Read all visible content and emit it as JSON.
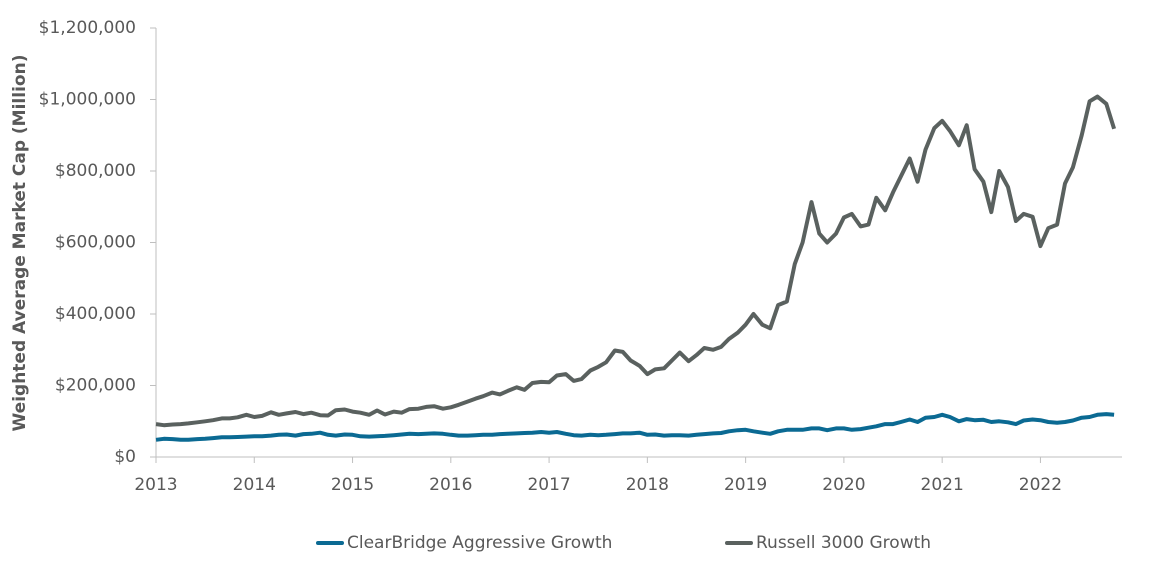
{
  "chart_data": {
    "type": "line",
    "y_label": "Weighted Average Market Cap (Million)",
    "x": [
      2013,
      2013.08,
      2013.17,
      2013.25,
      2013.33,
      2013.42,
      2013.5,
      2013.58,
      2013.67,
      2013.75,
      2013.83,
      2013.92,
      2014,
      2014.08,
      2014.17,
      2014.25,
      2014.33,
      2014.42,
      2014.5,
      2014.58,
      2014.67,
      2014.75,
      2014.83,
      2014.92,
      2015,
      2015.08,
      2015.17,
      2015.25,
      2015.33,
      2015.42,
      2015.5,
      2015.58,
      2015.67,
      2015.75,
      2015.83,
      2015.92,
      2016,
      2016.08,
      2016.17,
      2016.25,
      2016.33,
      2016.42,
      2016.5,
      2016.58,
      2016.67,
      2016.75,
      2016.83,
      2016.92,
      2017,
      2017.08,
      2017.17,
      2017.25,
      2017.33,
      2017.42,
      2017.5,
      2017.58,
      2017.67,
      2017.75,
      2017.83,
      2017.92,
      2018,
      2018.08,
      2018.17,
      2018.25,
      2018.33,
      2018.42,
      2018.5,
      2018.58,
      2018.67,
      2018.75,
      2018.83,
      2018.92,
      2019,
      2019.08,
      2019.17,
      2019.25,
      2019.33,
      2019.42,
      2019.5,
      2019.58,
      2019.67,
      2019.75,
      2019.83,
      2019.92,
      2020,
      2020.08,
      2020.17,
      2020.25,
      2020.33,
      2020.42,
      2020.5,
      2020.58,
      2020.67,
      2020.75,
      2020.83,
      2020.92,
      2021,
      2021.08,
      2021.17,
      2021.25,
      2021.33,
      2021.42,
      2021.5,
      2021.58,
      2021.67,
      2021.75,
      2021.83,
      2021.92,
      2022,
      2022.08,
      2022.17,
      2022.25,
      2022.33,
      2022.42,
      2022.5,
      2022.58,
      2022.67,
      2022.75
    ],
    "series": [
      {
        "name": "ClearBridge Aggressive Growth",
        "color": "#0b6a93",
        "values": [
          48000,
          51000,
          50000,
          48000,
          48000,
          50000,
          51000,
          53000,
          55000,
          55000,
          56000,
          57000,
          58000,
          58000,
          60000,
          62000,
          63000,
          60000,
          64000,
          65000,
          68000,
          62000,
          60000,
          63000,
          62000,
          58000,
          57000,
          58000,
          59000,
          61000,
          63000,
          65000,
          64000,
          65000,
          66000,
          65000,
          62000,
          60000,
          60000,
          61000,
          62000,
          62000,
          64000,
          65000,
          66000,
          67000,
          68000,
          70000,
          68000,
          70000,
          65000,
          61000,
          60000,
          62000,
          61000,
          62000,
          64000,
          66000,
          66000,
          68000,
          62000,
          63000,
          60000,
          61000,
          61000,
          60000,
          62000,
          64000,
          66000,
          67000,
          72000,
          75000,
          76000,
          72000,
          68000,
          65000,
          72000,
          76000,
          76000,
          76000,
          80000,
          80000,
          75000,
          80000,
          80000,
          76000,
          78000,
          82000,
          86000,
          92000,
          92000,
          98000,
          105000,
          98000,
          110000,
          112000,
          118000,
          112000,
          100000,
          106000,
          103000,
          104000,
          98000,
          100000,
          97000,
          92000,
          102000,
          105000,
          103000,
          98000,
          96000,
          98000,
          102000,
          110000,
          112000,
          118000,
          120000,
          118000
        ]
      },
      {
        "name": "Russell 3000 Growth",
        "color": "#5a615f",
        "values": [
          92000,
          89000,
          91000,
          92000,
          94000,
          97000,
          100000,
          103000,
          108000,
          108000,
          111000,
          118000,
          112000,
          115000,
          125000,
          118000,
          122000,
          126000,
          120000,
          124000,
          117000,
          116000,
          131000,
          133000,
          127000,
          124000,
          118000,
          130000,
          119000,
          127000,
          124000,
          134000,
          135000,
          140000,
          142000,
          135000,
          139000,
          146000,
          155000,
          163000,
          170000,
          180000,
          175000,
          185000,
          195000,
          188000,
          207000,
          210000,
          209000,
          228000,
          232000,
          213000,
          218000,
          242000,
          252000,
          265000,
          298000,
          294000,
          270000,
          255000,
          232000,
          245000,
          248000,
          270000,
          292000,
          268000,
          285000,
          305000,
          300000,
          308000,
          330000,
          348000,
          370000,
          400000,
          370000,
          360000,
          425000,
          435000,
          540000,
          600000,
          713000,
          625000,
          600000,
          625000,
          670000,
          680000,
          645000,
          650000,
          725000,
          690000,
          740000,
          785000,
          835000,
          770000,
          860000,
          920000,
          940000,
          912000,
          872000,
          928000,
          805000,
          770000,
          685000,
          800000,
          755000,
          660000,
          680000,
          672000,
          590000,
          640000,
          650000,
          765000,
          810000,
          900000,
          995000,
          1008000,
          988000,
          918000
        ]
      }
    ],
    "xlim": [
      2013,
      2022.83
    ],
    "xticks": [
      2013,
      2014,
      2015,
      2016,
      2017,
      2018,
      2019,
      2020,
      2021,
      2022
    ],
    "ylim": [
      0,
      1200000
    ],
    "yticks": [
      {
        "value": 0,
        "label": "$0"
      },
      {
        "value": 200000,
        "label": "$200,000"
      },
      {
        "value": 400000,
        "label": "$400,000"
      },
      {
        "value": 600000,
        "label": "$600,000"
      },
      {
        "value": 800000,
        "label": "$800,000"
      },
      {
        "value": 1000000,
        "label": "$1,000,000"
      },
      {
        "value": 1200000,
        "label": "$1,200,000"
      }
    ],
    "grid": false,
    "legend": "bottom"
  }
}
